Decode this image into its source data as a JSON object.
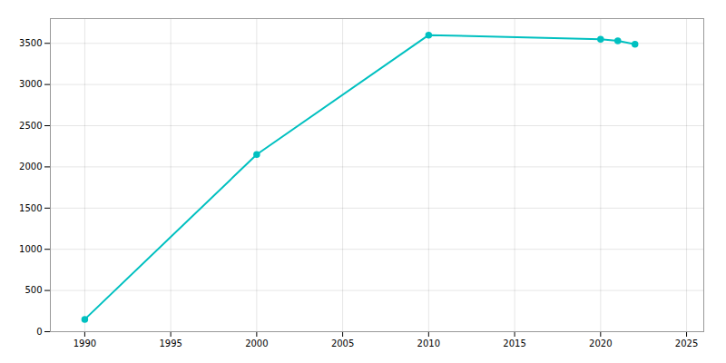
{
  "chart_data": {
    "type": "line",
    "x": [
      1990,
      2000,
      2010,
      2020,
      2021,
      2022
    ],
    "values": [
      150,
      2150,
      3600,
      3550,
      3530,
      3490
    ],
    "color": "#00C0C0",
    "marker": "o",
    "xlim": [
      1988,
      2026
    ],
    "ylim": [
      0,
      3800
    ],
    "xticks": [
      1990,
      1995,
      2000,
      2005,
      2010,
      2015,
      2020,
      2025
    ],
    "yticks": [
      0,
      500,
      1000,
      1500,
      2000,
      2500,
      3000,
      3500
    ],
    "grid": true
  }
}
